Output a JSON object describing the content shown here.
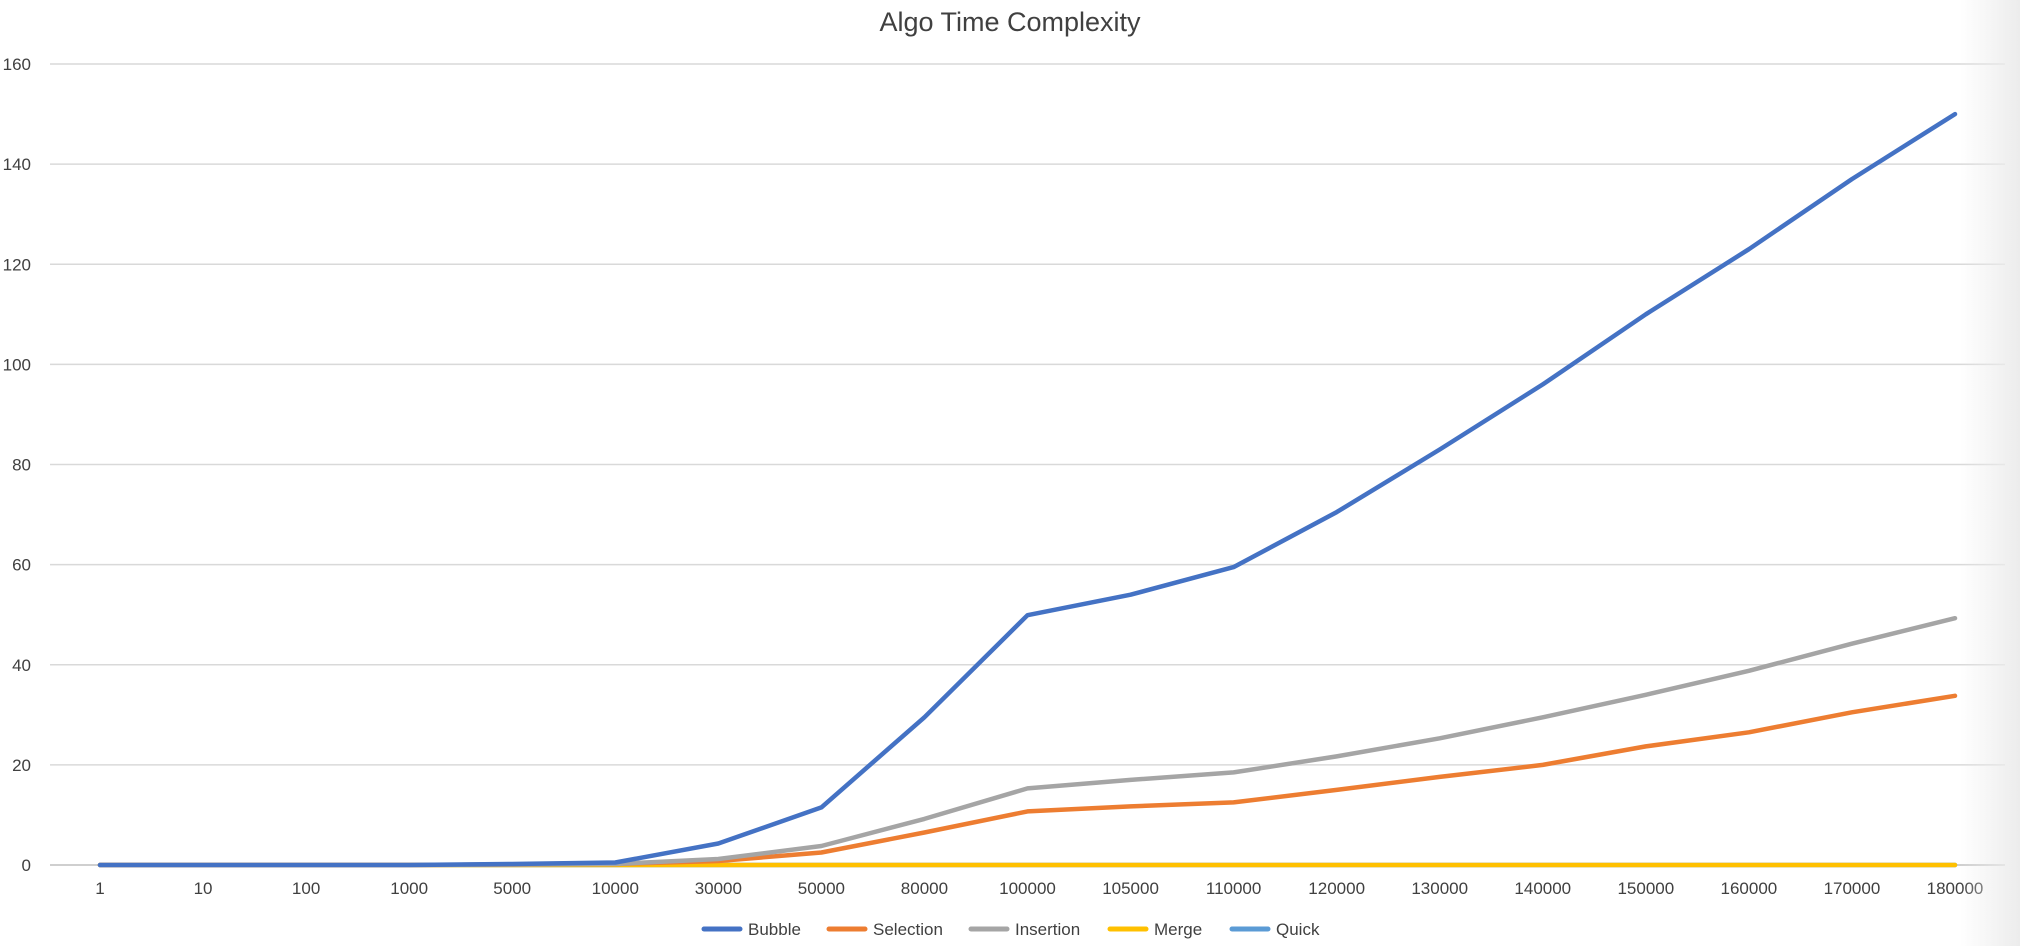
{
  "chart_data": {
    "type": "line",
    "title": "Algo Time Complexity",
    "xlabel": "",
    "ylabel": "",
    "ylim": [
      0,
      160
    ],
    "yticks": [
      0,
      20,
      40,
      60,
      80,
      100,
      120,
      140,
      160
    ],
    "grid": true,
    "legend_position": "bottom",
    "categories": [
      "1",
      "10",
      "100",
      "1000",
      "5000",
      "10000",
      "30000",
      "50000",
      "80000",
      "100000",
      "105000",
      "110000",
      "120000",
      "130000",
      "140000",
      "150000",
      "160000",
      "170000",
      "180000"
    ],
    "series": [
      {
        "name": "Bubble",
        "color": "#4472C4",
        "values": [
          0,
          0,
          0,
          0,
          0.2,
          0.5,
          4.3,
          11.5,
          29.5,
          49.9,
          54,
          59.5,
          70.5,
          83,
          96,
          110,
          123,
          137,
          150
        ]
      },
      {
        "name": "Selection",
        "color": "#ED7D31",
        "values": [
          0,
          0,
          0,
          0,
          0.1,
          0.2,
          0.8,
          2.5,
          6.5,
          10.7,
          11.7,
          12.5,
          15,
          17.6,
          20,
          23.7,
          26.5,
          30.5,
          33.8
        ]
      },
      {
        "name": "Insertion",
        "color": "#A5A5A5",
        "values": [
          0,
          0,
          0,
          0,
          0.1,
          0.2,
          1.2,
          3.8,
          9.2,
          15.3,
          17,
          18.5,
          21.7,
          25.3,
          29.5,
          34,
          38.8,
          44.2,
          49.3
        ]
      },
      {
        "name": "Merge",
        "color": "#FFC000",
        "values": [
          0,
          0,
          0,
          0,
          0,
          0,
          0,
          0,
          0,
          0,
          0,
          0,
          0,
          0,
          0,
          0,
          0,
          0,
          0
        ]
      },
      {
        "name": "Quick",
        "color": "#5B9BD5",
        "values": [
          0,
          0,
          0,
          0,
          0,
          0,
          0,
          0,
          0,
          0,
          0,
          0,
          0,
          0,
          0,
          0,
          0,
          0,
          0
        ]
      }
    ]
  }
}
